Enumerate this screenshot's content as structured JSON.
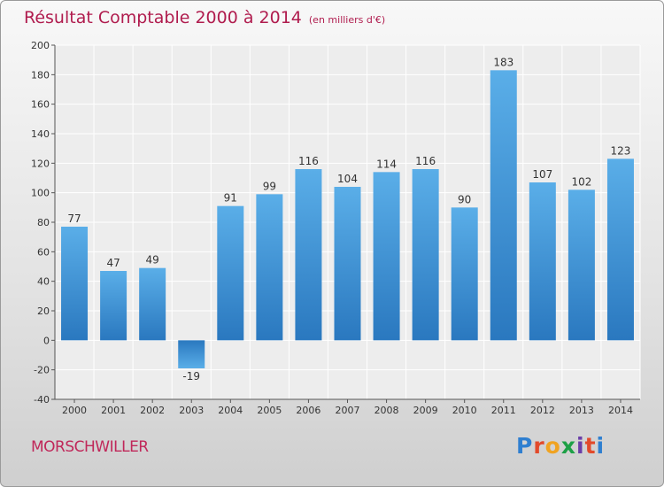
{
  "header": {
    "title": "Résultat Comptable 2000 à 2014",
    "subtitle": "(en milliers d'€)"
  },
  "commune": "MORSCHWILLER",
  "logo": {
    "letters": [
      "P",
      "r",
      "o",
      "x",
      "i",
      "t",
      "i"
    ],
    "colors": [
      "#2f7fd0",
      "#e24a2b",
      "#f0a321",
      "#1da046",
      "#6a3ea8",
      "#e24a2b",
      "#2f7fd0"
    ]
  },
  "chart_data": {
    "type": "bar",
    "title": "Résultat Comptable 2000 à 2014",
    "subtitle": "(en milliers d'€)",
    "categories": [
      "2000",
      "2001",
      "2002",
      "2003",
      "2004",
      "2005",
      "2006",
      "2007",
      "2008",
      "2009",
      "2010",
      "2011",
      "2012",
      "2013",
      "2014"
    ],
    "values": [
      77,
      47,
      49,
      -19,
      91,
      99,
      116,
      104,
      114,
      116,
      90,
      183,
      107,
      102,
      123
    ],
    "value_labels": [
      "77",
      "47",
      "49",
      "-19",
      "91",
      "99",
      "116",
      "104",
      "114",
      "116",
      "90",
      "183",
      "107",
      "102",
      "123"
    ],
    "ylim": [
      -40,
      200
    ],
    "yticks": [
      -40,
      -20,
      0,
      20,
      40,
      60,
      80,
      100,
      120,
      140,
      160,
      180,
      200
    ],
    "xlabel": "",
    "ylabel": "",
    "grid": true,
    "bar_color": "#4a9de0",
    "bar_color_dark": "#2a78bf"
  }
}
